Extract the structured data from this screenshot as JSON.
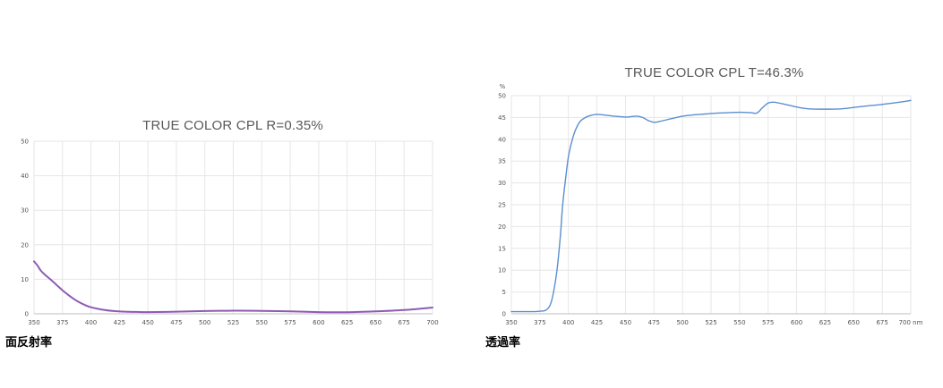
{
  "chart_data": [
    {
      "type": "line",
      "title": "TRUE COLOR CPL R=0.35%",
      "caption": "面反射率",
      "xlim": [
        350,
        700
      ],
      "ylim": [
        0,
        50
      ],
      "x_ticks": [
        350,
        375,
        400,
        425,
        450,
        475,
        500,
        525,
        550,
        575,
        600,
        625,
        650,
        675,
        700
      ],
      "y_ticks": [
        0,
        10,
        20,
        30,
        40,
        50
      ],
      "grid": true,
      "line_color": "#8e5bb5",
      "series": [
        {
          "x": [
            350,
            353,
            356,
            360,
            365,
            370,
            375,
            380,
            385,
            390,
            395,
            400,
            410,
            420,
            430,
            440,
            450,
            475,
            500,
            525,
            550,
            575,
            600,
            625,
            650,
            675,
            700
          ],
          "values": [
            15.2,
            14.0,
            12.5,
            11.2,
            9.8,
            8.3,
            6.8,
            5.5,
            4.3,
            3.3,
            2.5,
            1.9,
            1.2,
            0.8,
            0.6,
            0.55,
            0.5,
            0.6,
            0.8,
            0.9,
            0.85,
            0.7,
            0.5,
            0.45,
            0.7,
            1.1,
            1.8
          ]
        }
      ]
    },
    {
      "type": "line",
      "title": "TRUE COLOR CPL T=46.3%",
      "caption": "透過率",
      "y_unit": "%",
      "x_unit": "nm",
      "xlim": [
        350,
        700
      ],
      "ylim": [
        0,
        50
      ],
      "x_ticks": [
        350,
        375,
        400,
        425,
        450,
        475,
        500,
        525,
        550,
        575,
        600,
        625,
        650,
        675,
        700
      ],
      "y_ticks": [
        0,
        5,
        10,
        15,
        20,
        25,
        30,
        35,
        40,
        45,
        50
      ],
      "grid": true,
      "line_color": "#5b8fd0",
      "series": [
        {
          "x": [
            350,
            360,
            370,
            375,
            380,
            384,
            387,
            390,
            393,
            395,
            398,
            400,
            403,
            406,
            410,
            415,
            420,
            425,
            430,
            440,
            450,
            455,
            460,
            465,
            470,
            475,
            480,
            490,
            500,
            510,
            520,
            530,
            540,
            550,
            560,
            565,
            570,
            575,
            580,
            590,
            600,
            610,
            625,
            640,
            650,
            660,
            675,
            690,
            700
          ],
          "values": [
            0.5,
            0.5,
            0.5,
            0.6,
            0.8,
            2,
            5,
            10,
            18,
            25,
            32,
            36,
            39.5,
            42,
            44,
            45,
            45.5,
            45.7,
            45.6,
            45.3,
            45.1,
            45.2,
            45.3,
            45.0,
            44.3,
            43.9,
            44.1,
            44.7,
            45.3,
            45.6,
            45.8,
            46.0,
            46.1,
            46.2,
            46.1,
            46.0,
            47.2,
            48.3,
            48.5,
            48.0,
            47.4,
            47.0,
            46.9,
            47.0,
            47.3,
            47.6,
            48.0,
            48.5,
            48.9
          ]
        }
      ]
    }
  ]
}
